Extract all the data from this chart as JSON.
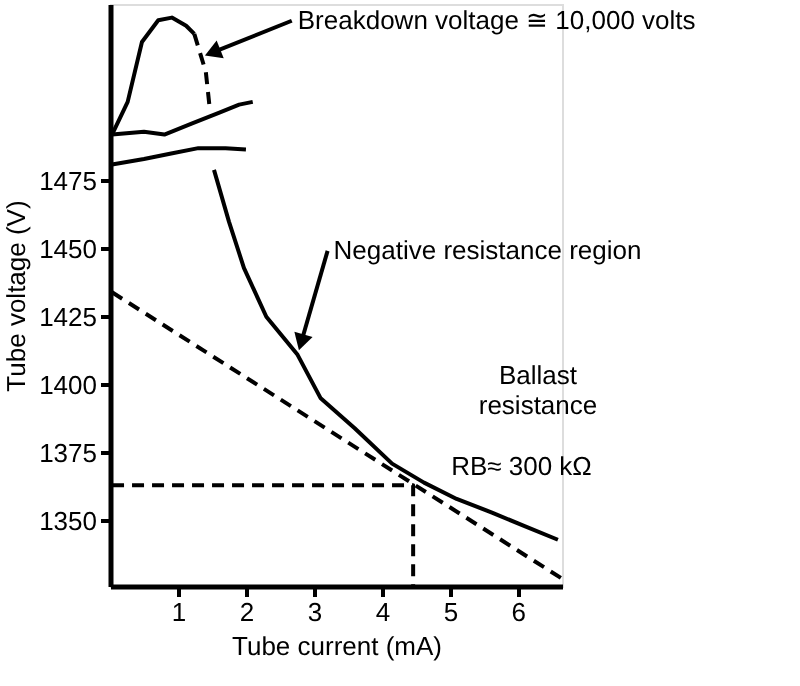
{
  "chart_data": {
    "type": "line",
    "xlabel": "Tube current (mA)",
    "ylabel": "Tube voltage (V)",
    "xlim": [
      0,
      6.65
    ],
    "ylim": [
      1326,
      1540
    ],
    "xticks": [
      1,
      2,
      3,
      4,
      5,
      6
    ],
    "yticks": [
      1350,
      1375,
      1400,
      1425,
      1450,
      1475
    ],
    "grid": false,
    "marker": "none",
    "series": [
      {
        "color": "#000000",
        "line_style": "solid",
        "x": [
          0.03,
          0.26,
          0.47,
          0.71,
          0.91,
          1.12,
          1.24
        ],
        "values": [
          1492,
          1504,
          1526,
          1534,
          1535,
          1532,
          1529
        ]
      },
      {
        "color": "#000000",
        "line_style": "dashed",
        "x": [
          1.24,
          1.41,
          1.47
        ],
        "values": [
          1529,
          1515,
          1501
        ]
      },
      {
        "color": "#000000",
        "line_style": "solid",
        "x": [
          0.03,
          0.5,
          0.8,
          1.2,
          1.6,
          1.9,
          2.1
        ],
        "values": [
          1492,
          1493,
          1492,
          1496,
          1500,
          1503,
          1504
        ]
      },
      {
        "color": "#000000",
        "line_style": "solid",
        "x": [
          0.03,
          0.5,
          0.9,
          1.3,
          1.7,
          2.0
        ],
        "values": [
          1481,
          1483,
          1485,
          1487,
          1487,
          1486.5
        ]
      },
      {
        "color": "#000000",
        "line_style": "solid",
        "x": [
          1.53,
          1.75,
          1.97,
          2.3,
          2.76,
          3.1,
          3.6,
          4.15,
          4.62,
          5.1,
          5.62,
          6.1,
          6.59
        ],
        "values": [
          1479,
          1460,
          1443,
          1425,
          1411,
          1395,
          1384,
          1371,
          1364,
          1358,
          1353,
          1348,
          1343
        ]
      },
      {
        "color": "#000000",
        "line_style": "dashed",
        "x": [
          0.03,
          6.65
        ],
        "values": [
          1434,
          1328.7
        ]
      },
      {
        "color": "#000000",
        "line_style": "dashed",
        "x": [
          0.03,
          4.46,
          4.46
        ],
        "values": [
          1363,
          1363,
          1326
        ]
      }
    ],
    "annotations": [
      {
        "text": "Breakdown voltage ≅ 10,000 volts",
        "x": 1.35,
        "y": 1520.6
      },
      {
        "text": "Negative resistance region",
        "x": 2.76,
        "y": 1411
      },
      {
        "text": "RB≈ 300 kΩ",
        "x": 4.46,
        "y": 1363
      },
      "Ballast\nresistance"
    ]
  }
}
